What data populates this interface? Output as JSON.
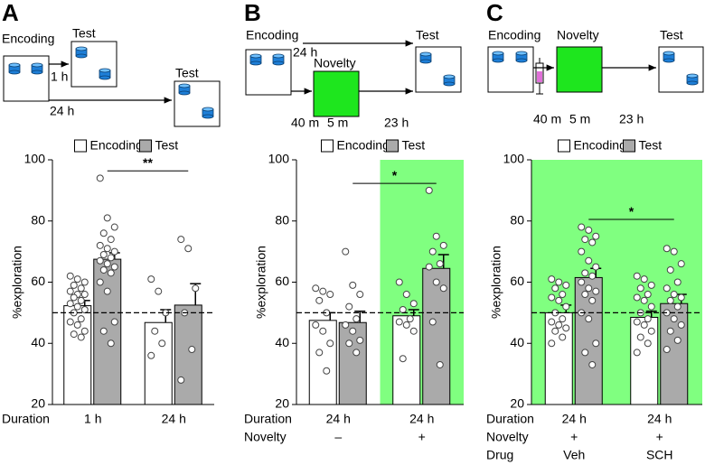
{
  "chart_data": [
    {
      "type": "bar",
      "label": "A",
      "ylabel": "%exploration",
      "ylim": [
        20,
        100
      ],
      "yticks": [
        20,
        40,
        60,
        80,
        100
      ],
      "hline": 50,
      "series": [
        {
          "name": "Encoding",
          "color": "#ffffff",
          "values": [
            52.3,
            46.8
          ],
          "errors": [
            1.7,
            4.2
          ],
          "points": [
            [
              62,
              61,
              60,
              59,
              58,
              57,
              56,
              56,
              55,
              54,
              53,
              52,
              51,
              50,
              48,
              47,
              46,
              44,
              43,
              42
            ],
            [
              61,
              57,
              50,
              44,
              40,
              36
            ]
          ]
        },
        {
          "name": "Test",
          "color": "#aaaaaa",
          "values": [
            67.5,
            52.5
          ],
          "errors": [
            2.1,
            7.0
          ],
          "points": [
            [
              94,
              81,
              78,
              76,
              74,
              72,
              71,
              70,
              69,
              68,
              67,
              66,
              65,
              64,
              63,
              60,
              57,
              47,
              44,
              40
            ],
            [
              74,
              71,
              58,
              50,
              38,
              28
            ]
          ]
        }
      ],
      "rows": [
        {
          "name": "Duration",
          "values": [
            "1 h",
            "24 h"
          ]
        }
      ],
      "significance": {
        "text": "**",
        "y": 96.4
      },
      "highlight": []
    },
    {
      "type": "bar",
      "label": "B",
      "ylabel": "%exploration",
      "ylim": [
        20,
        100
      ],
      "yticks": [
        20,
        40,
        60,
        80,
        100
      ],
      "hline": 50,
      "series": [
        {
          "name": "Encoding",
          "color": "#ffffff",
          "values": [
            47.5,
            49
          ],
          "errors": [
            2.5,
            2.0
          ],
          "points": [
            [
              58,
              57,
              56,
              54,
              50,
              46,
              44,
              40,
              37,
              31
            ],
            [
              60,
              56,
              53,
              51,
              48,
              47,
              46,
              44,
              35
            ]
          ]
        },
        {
          "name": "Test",
          "color": "#aaaaaa",
          "values": [
            46.8,
            64.5
          ],
          "errors": [
            3.7,
            4.5
          ],
          "points": [
            [
              70,
              59,
              56,
              52,
              48,
              46,
              44,
              41,
              40,
              37
            ],
            [
              90,
              75,
              72,
              70,
              66,
              65,
              60,
              58,
              47,
              33
            ]
          ]
        }
      ],
      "rows": [
        {
          "name": "Duration",
          "values": [
            "24 h",
            "24 h"
          ]
        },
        {
          "name": "Novelty",
          "values": [
            "–",
            "+"
          ]
        }
      ],
      "significance": {
        "text": "*",
        "y": 92.3
      },
      "highlight": [
        1
      ],
      "highlight_color": "#80ff80"
    },
    {
      "type": "bar",
      "label": "C",
      "ylabel": "%exploration",
      "ylim": [
        20,
        100
      ],
      "yticks": [
        20,
        40,
        60,
        80,
        100
      ],
      "hline": 50,
      "series": [
        {
          "name": "Encoding",
          "color": "#ffffff",
          "values": [
            50,
            48.5
          ],
          "errors": [
            2.5,
            2.0
          ],
          "points": [
            [
              61,
              60,
              59,
              58,
              56,
              55,
              54,
              52,
              50,
              48,
              47,
              46,
              45,
              44,
              42,
              40
            ],
            [
              62,
              61,
              59,
              58,
              56,
              55,
              54,
              52,
              50,
              48,
              47,
              46,
              44,
              42,
              40,
              37
            ]
          ]
        },
        {
          "name": "Test",
          "color": "#aaaaaa",
          "values": [
            61.5,
            53
          ],
          "errors": [
            3.0,
            3.0
          ],
          "points": [
            [
              78,
              77,
              75,
              74,
              73,
              70,
              67,
              65,
              63,
              62,
              60,
              58,
              57,
              56,
              54,
              50,
              48,
              40,
              37,
              33
            ],
            [
              71,
              70,
              66,
              64,
              60,
              58,
              56,
              55,
              54,
              52,
              50,
              48,
              46,
              44,
              41,
              38
            ]
          ]
        }
      ],
      "rows": [
        {
          "name": "Duration",
          "values": [
            "24 h",
            "24 h"
          ]
        },
        {
          "name": "Novelty",
          "values": [
            "+",
            "+"
          ]
        },
        {
          "name": "Drug",
          "values": [
            "Veh",
            "SCH"
          ]
        }
      ],
      "significance": {
        "text": "*",
        "y": 80.5
      },
      "highlight": [
        0,
        1
      ],
      "highlight_color": "#80ff80"
    }
  ],
  "schematics": [
    {
      "texts": [
        "Encoding",
        "Test",
        "1 h",
        "24 h",
        "Test"
      ]
    },
    {
      "texts": [
        "Encoding",
        "24 h",
        "Novelty",
        "Test",
        "40 m",
        "5 m",
        "23 h"
      ]
    },
    {
      "texts": [
        "Encoding",
        "Novelty",
        "Test",
        "40 m",
        "5 m",
        "23 h"
      ]
    }
  ]
}
